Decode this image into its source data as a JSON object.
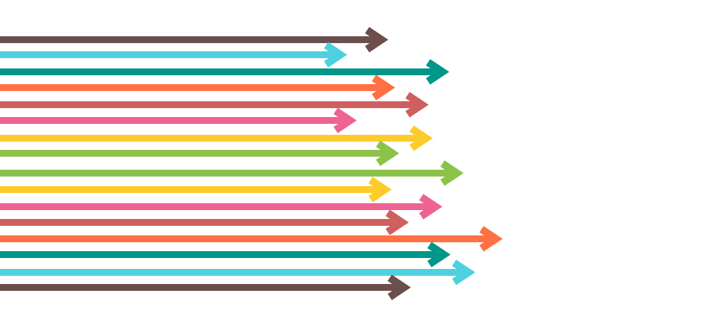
{
  "illustration": {
    "arrows": [
      {
        "color": "#6b4f4d"
      },
      {
        "color": "#4fd0e0"
      },
      {
        "color": "#00968a"
      },
      {
        "color": "#ff7043"
      },
      {
        "color": "#d05f5f"
      },
      {
        "color": "#ef6294"
      },
      {
        "color": "#fdcb2a"
      },
      {
        "color": "#8bc34a"
      },
      {
        "color": "#8bc34a"
      },
      {
        "color": "#fdcb2a"
      },
      {
        "color": "#ef6294"
      },
      {
        "color": "#d05f5f"
      },
      {
        "color": "#ff7043"
      },
      {
        "color": "#00968a"
      },
      {
        "color": "#4fd0e0"
      },
      {
        "color": "#6b4f4d"
      }
    ]
  }
}
